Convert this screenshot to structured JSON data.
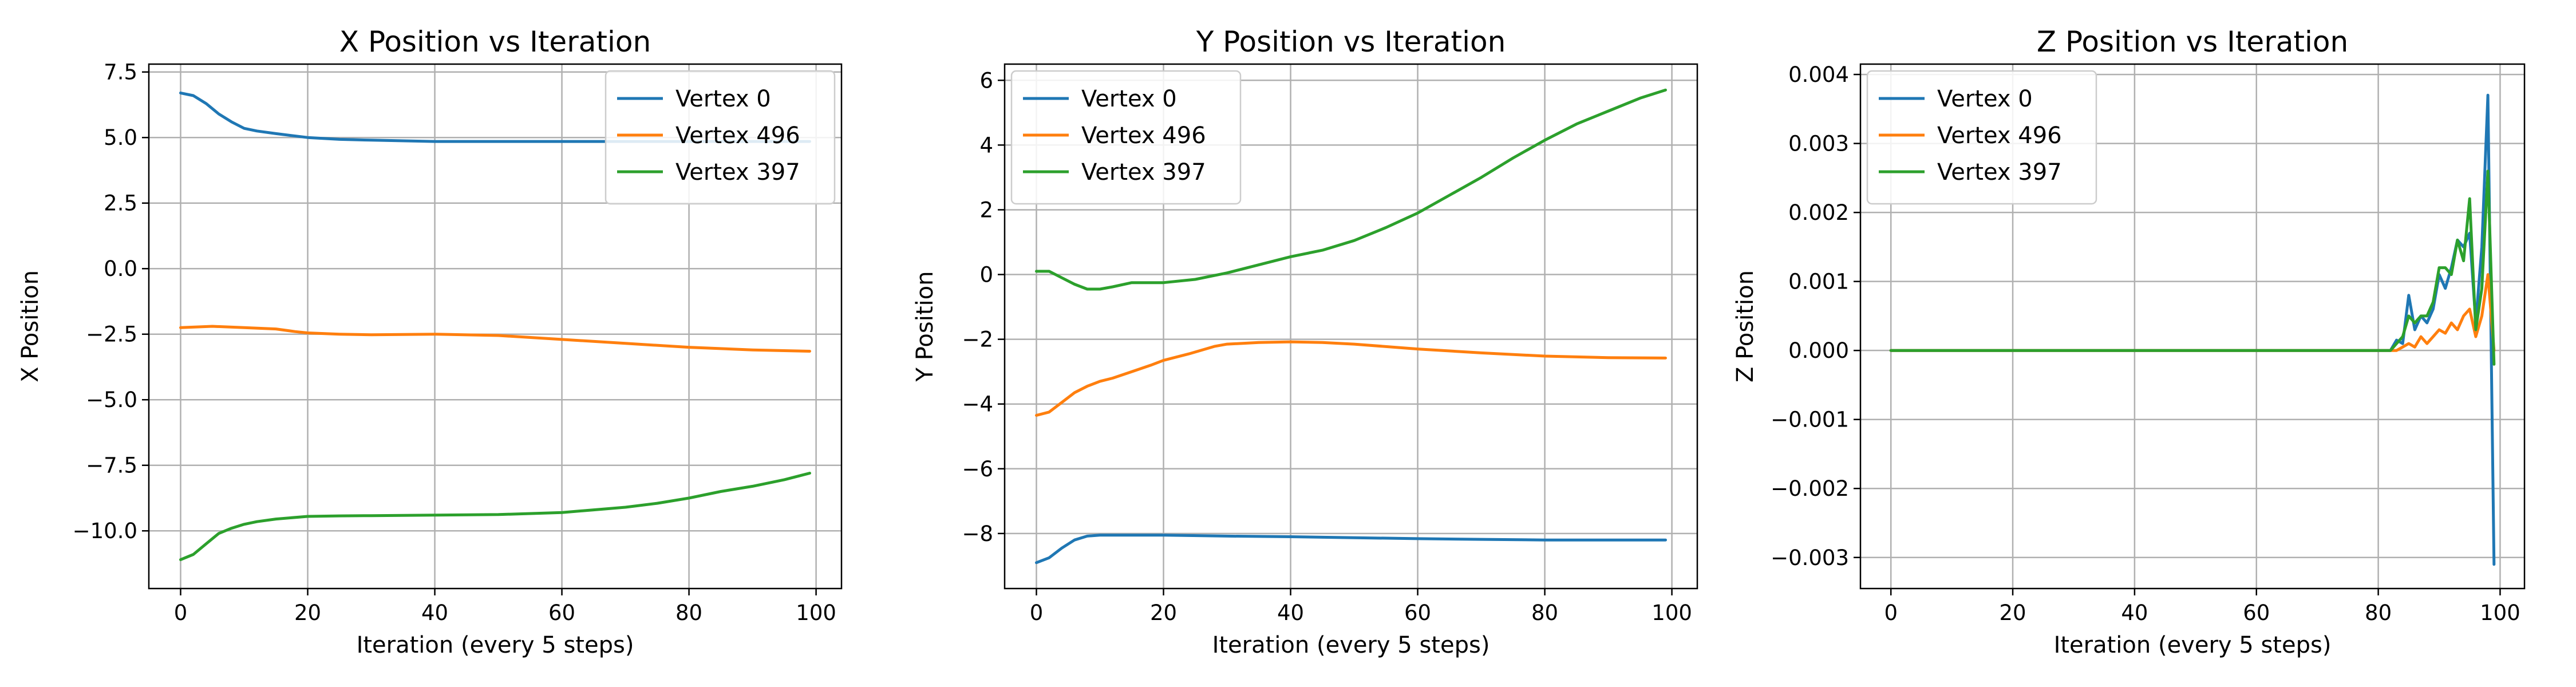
{
  "colors": {
    "vertex_0": "#1f77b4",
    "vertex_496": "#ff7f0e",
    "vertex_397": "#2ca02c",
    "grid": "#b0b0b0"
  },
  "chart_data": [
    {
      "type": "line",
      "title": "X Position vs Iteration",
      "xlabel": "Iteration (every 5 steps)",
      "ylabel": "X Position",
      "xlim": [
        -5,
        104
      ],
      "ylim": [
        -12.2,
        7.8
      ],
      "xticks": [
        0,
        20,
        40,
        60,
        80,
        100
      ],
      "xtick_labels": [
        "0",
        "20",
        "40",
        "60",
        "80",
        "100"
      ],
      "yticks": [
        7.5,
        5.0,
        2.5,
        0.0,
        -2.5,
        -5.0,
        -7.5,
        -10.0
      ],
      "ytick_labels": [
        "7.5",
        "5.0",
        "2.5",
        "0.0",
        "−2.5",
        "−5.0",
        "−7.5",
        "−10.0"
      ],
      "grid": true,
      "legend": "top-right",
      "series": [
        {
          "name": "Vertex 0",
          "color": "#1f77b4",
          "x": [
            0,
            2,
            4,
            6,
            8,
            10,
            12,
            15,
            20,
            25,
            30,
            40,
            50,
            60,
            70,
            80,
            90,
            99
          ],
          "y": [
            6.7,
            6.6,
            6.3,
            5.9,
            5.6,
            5.35,
            5.25,
            5.15,
            5.0,
            4.93,
            4.9,
            4.85,
            4.85,
            4.85,
            4.85,
            4.85,
            4.85,
            4.85
          ]
        },
        {
          "name": "Vertex 496",
          "color": "#ff7f0e",
          "x": [
            0,
            5,
            10,
            15,
            18,
            20,
            25,
            30,
            40,
            50,
            60,
            70,
            80,
            90,
            99
          ],
          "y": [
            -2.25,
            -2.2,
            -2.25,
            -2.3,
            -2.4,
            -2.45,
            -2.5,
            -2.52,
            -2.5,
            -2.55,
            -2.7,
            -2.85,
            -3.0,
            -3.1,
            -3.15
          ]
        },
        {
          "name": "Vertex 397",
          "color": "#2ca02c",
          "x": [
            0,
            2,
            4,
            6,
            8,
            10,
            12,
            15,
            20,
            25,
            30,
            40,
            50,
            60,
            65,
            70,
            75,
            80,
            85,
            90,
            95,
            99
          ],
          "y": [
            -11.1,
            -10.9,
            -10.5,
            -10.1,
            -9.9,
            -9.75,
            -9.65,
            -9.55,
            -9.45,
            -9.43,
            -9.42,
            -9.4,
            -9.38,
            -9.3,
            -9.2,
            -9.1,
            -8.95,
            -8.75,
            -8.5,
            -8.3,
            -8.05,
            -7.8
          ]
        }
      ]
    },
    {
      "type": "line",
      "title": "Y Position vs Iteration",
      "xlabel": "Iteration (every 5 steps)",
      "ylabel": "Y Position",
      "xlim": [
        -5,
        104
      ],
      "ylim": [
        -9.7,
        6.5
      ],
      "xticks": [
        0,
        20,
        40,
        60,
        80,
        100
      ],
      "xtick_labels": [
        "0",
        "20",
        "40",
        "60",
        "80",
        "100"
      ],
      "yticks": [
        6,
        4,
        2,
        0,
        -2,
        -4,
        -6,
        -8
      ],
      "ytick_labels": [
        "6",
        "4",
        "2",
        "0",
        "−2",
        "−4",
        "−6",
        "−8"
      ],
      "grid": true,
      "legend": "top-left",
      "series": [
        {
          "name": "Vertex 0",
          "color": "#1f77b4",
          "x": [
            0,
            2,
            4,
            6,
            8,
            10,
            15,
            20,
            30,
            40,
            50,
            60,
            70,
            80,
            90,
            99
          ],
          "y": [
            -8.9,
            -8.75,
            -8.45,
            -8.2,
            -8.08,
            -8.05,
            -8.05,
            -8.05,
            -8.08,
            -8.1,
            -8.13,
            -8.16,
            -8.18,
            -8.2,
            -8.2,
            -8.2
          ]
        },
        {
          "name": "Vertex 496",
          "color": "#ff7f0e",
          "x": [
            0,
            2,
            4,
            6,
            8,
            10,
            12,
            15,
            18,
            20,
            24,
            28,
            30,
            35,
            40,
            45,
            50,
            60,
            70,
            80,
            90,
            99
          ],
          "y": [
            -4.35,
            -4.25,
            -3.95,
            -3.65,
            -3.45,
            -3.3,
            -3.2,
            -3.0,
            -2.8,
            -2.65,
            -2.45,
            -2.22,
            -2.15,
            -2.1,
            -2.08,
            -2.1,
            -2.15,
            -2.3,
            -2.42,
            -2.52,
            -2.57,
            -2.58
          ]
        },
        {
          "name": "Vertex 397",
          "color": "#2ca02c",
          "x": [
            0,
            2,
            4,
            6,
            8,
            10,
            12,
            15,
            20,
            25,
            30,
            35,
            40,
            45,
            50,
            55,
            60,
            65,
            70,
            75,
            80,
            85,
            90,
            95,
            99
          ],
          "y": [
            0.1,
            0.1,
            -0.1,
            -0.3,
            -0.45,
            -0.45,
            -0.38,
            -0.25,
            -0.25,
            -0.15,
            0.05,
            0.3,
            0.55,
            0.75,
            1.05,
            1.45,
            1.9,
            2.45,
            3.0,
            3.6,
            4.15,
            4.65,
            5.05,
            5.45,
            5.7
          ]
        }
      ]
    },
    {
      "type": "line",
      "title": "Z Position vs Iteration",
      "xlabel": "Iteration (every 5 steps)",
      "ylabel": "Z Position",
      "xlim": [
        -5,
        104
      ],
      "ylim": [
        -0.00345,
        0.00415
      ],
      "xticks": [
        0,
        20,
        40,
        60,
        80,
        100
      ],
      "xtick_labels": [
        "0",
        "20",
        "40",
        "60",
        "80",
        "100"
      ],
      "yticks": [
        0.004,
        0.003,
        0.002,
        0.001,
        0.0,
        -0.001,
        -0.002,
        -0.003
      ],
      "ytick_labels": [
        "0.004",
        "0.003",
        "0.002",
        "0.001",
        "0.000",
        "−0.001",
        "−0.002",
        "−0.003"
      ],
      "grid": true,
      "legend": "top-left",
      "series": [
        {
          "name": "Vertex 0",
          "color": "#1f77b4",
          "x": [
            0,
            20,
            40,
            60,
            80,
            82,
            83,
            84,
            85,
            86,
            87,
            88,
            89,
            90,
            91,
            92,
            93,
            94,
            95,
            96,
            97,
            98,
            99
          ],
          "y": [
            0,
            0,
            0,
            0,
            0,
            0.0,
            0.00015,
            0.0001,
            0.0008,
            0.0003,
            0.0005,
            0.0004,
            0.0006,
            0.0011,
            0.0009,
            0.0012,
            0.0016,
            0.0015,
            0.0017,
            0.0004,
            0.0015,
            0.0037,
            -0.0031
          ]
        },
        {
          "name": "Vertex 496",
          "color": "#ff7f0e",
          "x": [
            0,
            20,
            40,
            60,
            80,
            83,
            84,
            85,
            86,
            87,
            88,
            89,
            90,
            91,
            92,
            93,
            94,
            95,
            96,
            97,
            98,
            99
          ],
          "y": [
            0,
            0,
            0,
            0,
            0,
            0.0,
            5e-05,
            0.0001,
            5e-05,
            0.0002,
            0.0001,
            0.0002,
            0.0003,
            0.00025,
            0.0004,
            0.0003,
            0.0005,
            0.0006,
            0.0002,
            0.0005,
            0.0011,
            0.0
          ]
        },
        {
          "name": "Vertex 397",
          "color": "#2ca02c",
          "x": [
            0,
            20,
            40,
            60,
            80,
            82,
            83,
            84,
            85,
            86,
            87,
            88,
            89,
            90,
            91,
            92,
            93,
            94,
            95,
            96,
            97,
            98,
            99
          ],
          "y": [
            0,
            0,
            0,
            0,
            0,
            0.0,
            0.0001,
            0.0002,
            0.0005,
            0.0004,
            0.0005,
            0.0005,
            0.0007,
            0.0012,
            0.0012,
            0.0011,
            0.0016,
            0.0013,
            0.0022,
            0.0003,
            0.0009,
            0.0026,
            -0.0002
          ]
        }
      ]
    }
  ]
}
